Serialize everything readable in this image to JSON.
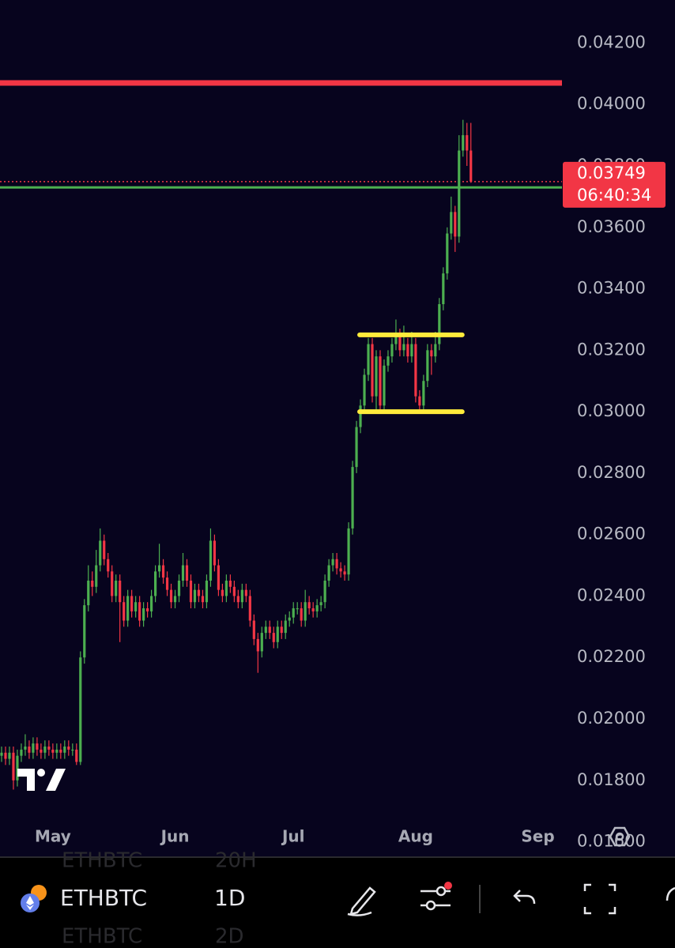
{
  "chart_data": {
    "type": "candlestick",
    "up_color": "#4caf50",
    "down_color": "#f23645",
    "xlim": [
      0.6,
      143.1
    ],
    "xticks": [
      {
        "value": 14,
        "label": "May"
      },
      {
        "value": 45,
        "label": "Jun"
      },
      {
        "value": 75,
        "label": "Jul"
      },
      {
        "value": 106,
        "label": "Aug"
      },
      {
        "value": 137,
        "label": "Sep"
      }
    ],
    "ylim": [
      0.0155,
      0.0434
    ],
    "yticks": [
      {
        "value": 0.042,
        "label": "0.04200"
      },
      {
        "value": 0.04,
        "label": "0.04000"
      },
      {
        "value": 0.038,
        "label": "0.03800"
      },
      {
        "value": 0.036,
        "label": "0.03600"
      },
      {
        "value": 0.034,
        "label": "0.03400"
      },
      {
        "value": 0.032,
        "label": "0.03200"
      },
      {
        "value": 0.03,
        "label": "0.03000"
      },
      {
        "value": 0.028,
        "label": "0.02800"
      },
      {
        "value": 0.026,
        "label": "0.02600"
      },
      {
        "value": 0.024,
        "label": "0.02400"
      },
      {
        "value": 0.022,
        "label": "0.02200"
      },
      {
        "value": 0.02,
        "label": "0.02000"
      },
      {
        "value": 0.018,
        "label": "0.01800"
      },
      {
        "value": 0.016,
        "label": "0.01600"
      }
    ],
    "levels": [
      {
        "value": 0.0407,
        "color": "#f23645"
      },
      {
        "value": 0.0373,
        "color": "#4caf50"
      }
    ],
    "range_lines": [
      {
        "value": 0.0325,
        "x": [
          91.8,
          117.8
        ],
        "color": "#ffeb3b"
      },
      {
        "value": 0.03,
        "x": [
          91.8,
          117.8
        ],
        "color": "#ffeb3b"
      }
    ],
    "last_price": 0.03749,
    "countdown": "06:40:34",
    "candles": [
      [
        0.0187,
        0.019,
        0.0185,
        0.0188
      ],
      [
        0.0188,
        0.0191,
        0.0186,
        0.0189
      ],
      [
        0.0189,
        0.0191,
        0.0185,
        0.0187
      ],
      [
        0.0187,
        0.0191,
        0.0185,
        0.0189
      ],
      [
        0.0189,
        0.0191,
        0.0177,
        0.018
      ],
      [
        0.018,
        0.019,
        0.0178,
        0.0188
      ],
      [
        0.0188,
        0.0192,
        0.0186,
        0.019
      ],
      [
        0.019,
        0.0195,
        0.0188,
        0.0191
      ],
      [
        0.0191,
        0.0193,
        0.0187,
        0.0189
      ],
      [
        0.0189,
        0.0194,
        0.0187,
        0.0192
      ],
      [
        0.0192,
        0.0194,
        0.0188,
        0.019
      ],
      [
        0.019,
        0.0192,
        0.0187,
        0.0189
      ],
      [
        0.0189,
        0.0193,
        0.0187,
        0.0191
      ],
      [
        0.0191,
        0.0193,
        0.0188,
        0.019
      ],
      [
        0.019,
        0.0192,
        0.0187,
        0.0189
      ],
      [
        0.0189,
        0.0192,
        0.0187,
        0.019
      ],
      [
        0.019,
        0.0192,
        0.0187,
        0.0189
      ],
      [
        0.0189,
        0.0193,
        0.0187,
        0.0191
      ],
      [
        0.0191,
        0.0193,
        0.0188,
        0.019
      ],
      [
        0.019,
        0.0192,
        0.0188,
        0.019
      ],
      [
        0.019,
        0.0192,
        0.0185,
        0.0186
      ],
      [
        0.0186,
        0.0222,
        0.0185,
        0.022
      ],
      [
        0.022,
        0.0239,
        0.0218,
        0.0237
      ],
      [
        0.0237,
        0.025,
        0.0235,
        0.0245
      ],
      [
        0.0245,
        0.0248,
        0.024,
        0.0243
      ],
      [
        0.0243,
        0.0255,
        0.0241,
        0.025
      ],
      [
        0.025,
        0.0262,
        0.0248,
        0.0258
      ],
      [
        0.0258,
        0.026,
        0.025,
        0.0252
      ],
      [
        0.0252,
        0.0254,
        0.0246,
        0.0248
      ],
      [
        0.0248,
        0.025,
        0.0238,
        0.024
      ],
      [
        0.024,
        0.0247,
        0.0238,
        0.0245
      ],
      [
        0.0245,
        0.0247,
        0.0225,
        0.0238
      ],
      [
        0.0238,
        0.024,
        0.023,
        0.0232
      ],
      [
        0.0232,
        0.0242,
        0.023,
        0.024
      ],
      [
        0.024,
        0.0242,
        0.0233,
        0.0235
      ],
      [
        0.0235,
        0.024,
        0.0233,
        0.0238
      ],
      [
        0.0238,
        0.024,
        0.023,
        0.0232
      ],
      [
        0.0232,
        0.0238,
        0.023,
        0.0236
      ],
      [
        0.0236,
        0.0238,
        0.0233,
        0.0235
      ],
      [
        0.0235,
        0.0242,
        0.0233,
        0.024
      ],
      [
        0.024,
        0.025,
        0.0238,
        0.0248
      ],
      [
        0.0248,
        0.0257,
        0.0246,
        0.025
      ],
      [
        0.025,
        0.0252,
        0.0244,
        0.0246
      ],
      [
        0.0246,
        0.0248,
        0.024,
        0.0242
      ],
      [
        0.0242,
        0.0244,
        0.0236,
        0.0238
      ],
      [
        0.0238,
        0.0242,
        0.0236,
        0.024
      ],
      [
        0.024,
        0.0247,
        0.0238,
        0.0245
      ],
      [
        0.0245,
        0.0254,
        0.0243,
        0.025
      ],
      [
        0.025,
        0.0252,
        0.0243,
        0.0245
      ],
      [
        0.0245,
        0.0247,
        0.0236,
        0.0238
      ],
      [
        0.0238,
        0.0244,
        0.0236,
        0.0242
      ],
      [
        0.0242,
        0.0244,
        0.0238,
        0.024
      ],
      [
        0.024,
        0.0242,
        0.0236,
        0.0238
      ],
      [
        0.0238,
        0.0247,
        0.0236,
        0.0245
      ],
      [
        0.0245,
        0.0262,
        0.0243,
        0.0258
      ],
      [
        0.0258,
        0.026,
        0.0248,
        0.025
      ],
      [
        0.025,
        0.0252,
        0.024,
        0.0242
      ],
      [
        0.0242,
        0.0244,
        0.0238,
        0.024
      ],
      [
        0.024,
        0.0247,
        0.0238,
        0.0245
      ],
      [
        0.0245,
        0.0247,
        0.0241,
        0.0243
      ],
      [
        0.0243,
        0.0245,
        0.0238,
        0.024
      ],
      [
        0.024,
        0.0242,
        0.0236,
        0.0238
      ],
      [
        0.0238,
        0.0244,
        0.0236,
        0.0242
      ],
      [
        0.0242,
        0.0244,
        0.0238,
        0.024
      ],
      [
        0.024,
        0.0242,
        0.023,
        0.0232
      ],
      [
        0.0232,
        0.0234,
        0.0224,
        0.0226
      ],
      [
        0.0226,
        0.0228,
        0.0215,
        0.0222
      ],
      [
        0.0222,
        0.023,
        0.022,
        0.0228
      ],
      [
        0.0228,
        0.0232,
        0.0226,
        0.023
      ],
      [
        0.023,
        0.0232,
        0.0226,
        0.0228
      ],
      [
        0.0228,
        0.023,
        0.0223,
        0.0225
      ],
      [
        0.0225,
        0.0232,
        0.0223,
        0.023
      ],
      [
        0.023,
        0.0232,
        0.0226,
        0.0228
      ],
      [
        0.0228,
        0.0234,
        0.0226,
        0.0232
      ],
      [
        0.0232,
        0.0235,
        0.023,
        0.0233
      ],
      [
        0.0233,
        0.0238,
        0.0231,
        0.0236
      ],
      [
        0.0236,
        0.0238,
        0.0234,
        0.0236
      ],
      [
        0.0236,
        0.0238,
        0.023,
        0.0232
      ],
      [
        0.0232,
        0.0242,
        0.023,
        0.0238
      ],
      [
        0.0238,
        0.024,
        0.0234,
        0.0236
      ],
      [
        0.0236,
        0.0238,
        0.0233,
        0.0235
      ],
      [
        0.0235,
        0.0239,
        0.0233,
        0.0237
      ],
      [
        0.0237,
        0.024,
        0.0235,
        0.0238
      ],
      [
        0.0238,
        0.0247,
        0.0236,
        0.0245
      ],
      [
        0.0245,
        0.0252,
        0.0243,
        0.025
      ],
      [
        0.025,
        0.0254,
        0.0248,
        0.0252
      ],
      [
        0.0252,
        0.0254,
        0.0247,
        0.0249
      ],
      [
        0.0249,
        0.0251,
        0.0246,
        0.0248
      ],
      [
        0.0248,
        0.025,
        0.0245,
        0.0247
      ],
      [
        0.0247,
        0.0264,
        0.0245,
        0.0262
      ],
      [
        0.0262,
        0.0284,
        0.026,
        0.0282
      ],
      [
        0.0282,
        0.0297,
        0.028,
        0.0295
      ],
      [
        0.0295,
        0.0304,
        0.0293,
        0.0302
      ],
      [
        0.0302,
        0.0314,
        0.03,
        0.0312
      ],
      [
        0.0312,
        0.0324,
        0.031,
        0.0322
      ],
      [
        0.0322,
        0.0324,
        0.0303,
        0.0305
      ],
      [
        0.0305,
        0.032,
        0.03,
        0.0318
      ],
      [
        0.0318,
        0.032,
        0.03,
        0.0302
      ],
      [
        0.0302,
        0.0317,
        0.03,
        0.0315
      ],
      [
        0.0315,
        0.032,
        0.0313,
        0.0318
      ],
      [
        0.0318,
        0.0324,
        0.0316,
        0.0322
      ],
      [
        0.0322,
        0.033,
        0.032,
        0.0325
      ],
      [
        0.0325,
        0.0327,
        0.0318,
        0.032
      ],
      [
        0.032,
        0.0328,
        0.0318,
        0.0322
      ],
      [
        0.0322,
        0.0324,
        0.0316,
        0.0318
      ],
      [
        0.0318,
        0.0326,
        0.0316,
        0.0322
      ],
      [
        0.0322,
        0.0324,
        0.0303,
        0.0305
      ],
      [
        0.0305,
        0.0307,
        0.03,
        0.0302
      ],
      [
        0.0302,
        0.0312,
        0.03,
        0.031
      ],
      [
        0.031,
        0.0322,
        0.0308,
        0.032
      ],
      [
        0.032,
        0.0322,
        0.0312,
        0.0318
      ],
      [
        0.0318,
        0.0326,
        0.0316,
        0.0322
      ],
      [
        0.0322,
        0.0337,
        0.032,
        0.0335
      ],
      [
        0.0335,
        0.0347,
        0.0333,
        0.0345
      ],
      [
        0.0345,
        0.036,
        0.0343,
        0.0358
      ],
      [
        0.0358,
        0.037,
        0.0356,
        0.0365
      ],
      [
        0.0365,
        0.0367,
        0.0352,
        0.0357
      ],
      [
        0.0357,
        0.039,
        0.0355,
        0.0385
      ],
      [
        0.0385,
        0.0395,
        0.0383,
        0.039
      ],
      [
        0.039,
        0.0394,
        0.038,
        0.0385
      ],
      [
        0.0385,
        0.0394,
        0.03745,
        0.03749
      ]
    ]
  },
  "toolbar": {
    "symbol": "ETHBTC",
    "interval": "1D",
    "ghost_above": [
      "ETHBTC",
      "20H"
    ],
    "ghost_below": [
      "ETHBTC",
      "2D"
    ]
  }
}
